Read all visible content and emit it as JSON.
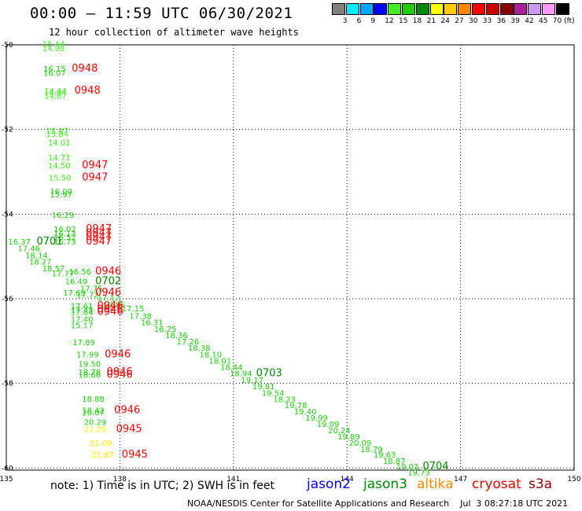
{
  "header": {
    "title": "00:00 – 11:59 UTC 06/30/2021",
    "subtitle": "12 hour collection of altimeter wave heights"
  },
  "colorbar": {
    "labels": [
      "3",
      "6",
      "9",
      "12",
      "15",
      "18",
      "21",
      "24",
      "27",
      "30",
      "33",
      "36",
      "39",
      "42",
      "45",
      "70 (ft)"
    ],
    "colors": [
      "#808080",
      "#00eaff",
      "#00a8ff",
      "#0000ff",
      "#44ee22",
      "#22cc11",
      "#008800",
      "#ffff00",
      "#ffcc00",
      "#ff8800",
      "#ff0000",
      "#cc0000",
      "#880000",
      "#aa2299",
      "#cc99ee",
      "#ff99ff",
      "#000000"
    ]
  },
  "chart_data": {
    "type": "scatter",
    "x_ticks": [
      "135",
      "138",
      "141",
      "144",
      "147",
      "150"
    ],
    "y_ticks": [
      "-50",
      "-52",
      "-54",
      "-56",
      "-58",
      "-60"
    ],
    "xlim": [
      135,
      150
    ],
    "ylim": [
      -60.05,
      -50
    ],
    "grid": true,
    "wave_labels": [
      {
        "t": "15.44",
        "lon": 135.95,
        "lat": -50.05,
        "c": "#44ee22"
      },
      {
        "t": "14.98",
        "lon": 135.95,
        "lat": -50.15,
        "c": "#44ee22"
      },
      {
        "t": "16.15",
        "lon": 135.98,
        "lat": -50.63,
        "c": "#22cc11"
      },
      {
        "t": "16.07",
        "lon": 135.98,
        "lat": -50.73,
        "c": "#22cc11"
      },
      {
        "t": "14.44",
        "lon": 136.0,
        "lat": -51.15,
        "c": "#44ee22"
      },
      {
        "t": "14.84",
        "lon": 136.0,
        "lat": -51.2,
        "c": "#44ee22"
      },
      {
        "t": "14.87",
        "lon": 136.0,
        "lat": -51.27,
        "c": "#44ee22"
      },
      {
        "t": "15.87",
        "lon": 136.05,
        "lat": -52.1,
        "c": "#44ee22"
      },
      {
        "t": "15.84",
        "lon": 136.05,
        "lat": -52.17,
        "c": "#44ee22"
      },
      {
        "t": "14.01",
        "lon": 136.1,
        "lat": -52.38,
        "c": "#44ee22"
      },
      {
        "t": "14.71",
        "lon": 136.1,
        "lat": -52.73,
        "c": "#44ee22"
      },
      {
        "t": "14.50",
        "lon": 136.1,
        "lat": -52.92,
        "c": "#44ee22"
      },
      {
        "t": "15.50",
        "lon": 136.12,
        "lat": -53.2,
        "c": "#44ee22"
      },
      {
        "t": "16.00",
        "lon": 136.15,
        "lat": -53.53,
        "c": "#22cc11"
      },
      {
        "t": "15.97",
        "lon": 136.15,
        "lat": -53.6,
        "c": "#22cc11"
      },
      {
        "t": "16.29",
        "lon": 136.2,
        "lat": -54.09,
        "c": "#22cc11"
      },
      {
        "t": "16.02",
        "lon": 136.25,
        "lat": -54.42,
        "c": "#22cc11"
      },
      {
        "t": "16.13",
        "lon": 136.25,
        "lat": -54.52,
        "c": "#22cc11"
      },
      {
        "t": "16.52",
        "lon": 136.25,
        "lat": -54.62,
        "c": "#22cc11"
      },
      {
        "t": "16.73",
        "lon": 136.25,
        "lat": -54.72,
        "c": "#22cc11"
      },
      {
        "t": "16.37",
        "lon": 135.05,
        "lat": -54.72,
        "c": "#22cc11"
      },
      {
        "t": "17.46",
        "lon": 135.3,
        "lat": -54.88,
        "c": "#22cc11"
      },
      {
        "t": "18.14",
        "lon": 135.5,
        "lat": -55.04,
        "c": "#22cc11"
      },
      {
        "t": "18.27",
        "lon": 135.6,
        "lat": -55.19,
        "c": "#22cc11"
      },
      {
        "t": "18.57",
        "lon": 135.95,
        "lat": -55.35,
        "c": "#22cc11"
      },
      {
        "t": "17.77",
        "lon": 136.2,
        "lat": -55.47,
        "c": "#22cc11"
      },
      {
        "t": "16.56",
        "lon": 136.65,
        "lat": -55.42,
        "c": "#22cc11"
      },
      {
        "t": "16.49",
        "lon": 136.55,
        "lat": -55.66,
        "c": "#22cc11"
      },
      {
        "t": "17.75",
        "lon": 136.95,
        "lat": -55.82,
        "c": "#22cc11"
      },
      {
        "t": "17.69",
        "lon": 136.5,
        "lat": -55.93,
        "c": "#22cc11"
      },
      {
        "t": "17.72",
        "lon": 136.85,
        "lat": -55.97,
        "c": "#22cc11"
      },
      {
        "t": "17.12",
        "lon": 137.4,
        "lat": -56.05,
        "c": "#22cc11"
      },
      {
        "t": "17.61",
        "lon": 136.7,
        "lat": -56.24,
        "c": "#22cc11"
      },
      {
        "t": "17.85",
        "lon": 137.55,
        "lat": -56.21,
        "c": "#22cc11"
      },
      {
        "t": "17.75",
        "lon": 136.7,
        "lat": -56.33,
        "c": "#22cc11"
      },
      {
        "t": "17.84",
        "lon": 136.7,
        "lat": -56.38,
        "c": "#22cc11"
      },
      {
        "t": "17.15",
        "lon": 138.05,
        "lat": -56.3,
        "c": "#22cc11"
      },
      {
        "t": "17.38",
        "lon": 138.25,
        "lat": -56.47,
        "c": "#22cc11"
      },
      {
        "t": "17.40",
        "lon": 136.7,
        "lat": -56.55,
        "c": "#22cc11"
      },
      {
        "t": "16.31",
        "lon": 138.55,
        "lat": -56.62,
        "c": "#22cc11"
      },
      {
        "t": "15.17",
        "lon": 136.7,
        "lat": -56.7,
        "c": "#22cc11"
      },
      {
        "t": "16.25",
        "lon": 138.9,
        "lat": -56.78,
        "c": "#22cc11"
      },
      {
        "t": "18.36",
        "lon": 139.2,
        "lat": -56.93,
        "c": "#22cc11"
      },
      {
        "t": "17.89",
        "lon": 136.75,
        "lat": -57.1,
        "c": "#22cc11"
      },
      {
        "t": "17.26",
        "lon": 139.5,
        "lat": -57.08,
        "c": "#22cc11"
      },
      {
        "t": "18.38",
        "lon": 139.8,
        "lat": -57.23,
        "c": "#22cc11"
      },
      {
        "t": "17.99",
        "lon": 136.85,
        "lat": -57.38,
        "c": "#22cc11"
      },
      {
        "t": "18.10",
        "lon": 140.1,
        "lat": -57.38,
        "c": "#22cc11"
      },
      {
        "t": "18.01",
        "lon": 140.35,
        "lat": -57.53,
        "c": "#22cc11"
      },
      {
        "t": "19.50",
        "lon": 136.9,
        "lat": -57.61,
        "c": "#22cc11"
      },
      {
        "t": "18.44",
        "lon": 140.65,
        "lat": -57.68,
        "c": "#22cc11"
      },
      {
        "t": "18.78",
        "lon": 136.9,
        "lat": -57.8,
        "c": "#22cc11"
      },
      {
        "t": "18.66",
        "lon": 136.9,
        "lat": -57.87,
        "c": "#22cc11"
      },
      {
        "t": "18.94",
        "lon": 140.9,
        "lat": -57.83,
        "c": "#22cc11"
      },
      {
        "t": "19.17",
        "lon": 141.2,
        "lat": -57.99,
        "c": "#22cc11"
      },
      {
        "t": "19.81",
        "lon": 141.5,
        "lat": -58.14,
        "c": "#22cc11"
      },
      {
        "t": "19.54",
        "lon": 141.75,
        "lat": -58.29,
        "c": "#22cc11"
      },
      {
        "t": "18.23",
        "lon": 142.05,
        "lat": -58.44,
        "c": "#22cc11"
      },
      {
        "t": "18.88",
        "lon": 137.0,
        "lat": -58.43,
        "c": "#22cc11"
      },
      {
        "t": "19.78",
        "lon": 142.35,
        "lat": -58.58,
        "c": "#22cc11"
      },
      {
        "t": "19.40",
        "lon": 142.6,
        "lat": -58.73,
        "c": "#22cc11"
      },
      {
        "t": "18.42",
        "lon": 137.0,
        "lat": -58.7,
        "c": "#22cc11"
      },
      {
        "t": "20.07",
        "lon": 137.0,
        "lat": -58.76,
        "c": "#22cc11"
      },
      {
        "t": "19.99",
        "lon": 142.9,
        "lat": -58.88,
        "c": "#22cc11"
      },
      {
        "t": "20.29",
        "lon": 137.05,
        "lat": -58.98,
        "c": "#22cc11"
      },
      {
        "t": "19.09",
        "lon": 143.2,
        "lat": -59.03,
        "c": "#22cc11"
      },
      {
        "t": "21.25",
        "lon": 137.05,
        "lat": -59.15,
        "c": "#ffee00"
      },
      {
        "t": "20.24",
        "lon": 143.5,
        "lat": -59.18,
        "c": "#22cc11"
      },
      {
        "t": "19.89",
        "lon": 143.75,
        "lat": -59.33,
        "c": "#22cc11"
      },
      {
        "t": "20.09",
        "lon": 144.05,
        "lat": -59.47,
        "c": "#22cc11"
      },
      {
        "t": "21.09",
        "lon": 137.2,
        "lat": -59.47,
        "c": "#ffee00"
      },
      {
        "t": "18.79",
        "lon": 144.35,
        "lat": -59.62,
        "c": "#22cc11"
      },
      {
        "t": "21.87",
        "lon": 137.25,
        "lat": -59.75,
        "c": "#ffee00"
      },
      {
        "t": "19.63",
        "lon": 144.7,
        "lat": -59.75,
        "c": "#22cc11"
      },
      {
        "t": "18.87",
        "lon": 144.95,
        "lat": -59.9,
        "c": "#22cc11"
      },
      {
        "t": "19.03",
        "lon": 145.3,
        "lat": -60.03,
        "c": "#22cc11"
      },
      {
        "t": "19.73",
        "lon": 145.6,
        "lat": -60.17,
        "c": "#22cc11"
      }
    ],
    "time_labels": [
      {
        "t": "0948",
        "lon": 136.73,
        "lat": -50.63,
        "c": "#ff0000"
      },
      {
        "t": "0948",
        "lon": 136.8,
        "lat": -51.15,
        "c": "#ff0000"
      },
      {
        "t": "0947",
        "lon": 137.0,
        "lat": -52.92,
        "c": "#ff0000"
      },
      {
        "t": "0947",
        "lon": 137.0,
        "lat": -53.2,
        "c": "#ff0000"
      },
      {
        "t": "0947",
        "lon": 137.1,
        "lat": -54.42,
        "c": "#ff0000"
      },
      {
        "t": "0947",
        "lon": 137.1,
        "lat": -54.52,
        "c": "#ff0000"
      },
      {
        "t": "0947",
        "lon": 137.1,
        "lat": -54.62,
        "c": "#ff0000"
      },
      {
        "t": "0947",
        "lon": 137.1,
        "lat": -54.72,
        "c": "#ff0000"
      },
      {
        "t": "0701",
        "lon": 135.8,
        "lat": -54.72,
        "c": "#008800"
      },
      {
        "t": "0946",
        "lon": 137.35,
        "lat": -55.42,
        "c": "#ff0000"
      },
      {
        "t": "0702",
        "lon": 137.35,
        "lat": -55.66,
        "c": "#008800"
      },
      {
        "t": "0946",
        "lon": 137.35,
        "lat": -55.93,
        "c": "#ff0000"
      },
      {
        "t": "0946",
        "lon": 137.4,
        "lat": -56.24,
        "c": "#ff0000"
      },
      {
        "t": "0946",
        "lon": 137.4,
        "lat": -56.33,
        "c": "#ff0000"
      },
      {
        "t": "0946",
        "lon": 137.4,
        "lat": -56.38,
        "c": "#ff0000"
      },
      {
        "t": "0946",
        "lon": 137.6,
        "lat": -57.38,
        "c": "#ff0000"
      },
      {
        "t": "0946",
        "lon": 137.65,
        "lat": -57.8,
        "c": "#ff0000"
      },
      {
        "t": "0946",
        "lon": 137.65,
        "lat": -57.87,
        "c": "#ff0000"
      },
      {
        "t": "0703",
        "lon": 141.6,
        "lat": -57.83,
        "c": "#008800"
      },
      {
        "t": "0946",
        "lon": 137.85,
        "lat": -58.7,
        "c": "#ff0000"
      },
      {
        "t": "0945",
        "lon": 137.9,
        "lat": -59.15,
        "c": "#ff0000"
      },
      {
        "t": "0945",
        "lon": 138.05,
        "lat": -59.75,
        "c": "#ff0000"
      },
      {
        "t": "0704",
        "lon": 146.0,
        "lat": -60.03,
        "c": "#008800"
      }
    ]
  },
  "footer": {
    "note": "note: 1) Time is in UTC; 2) SWH is in feet",
    "satellites": [
      {
        "name": "jason2",
        "color": "#0000ff"
      },
      {
        "name": "jason3",
        "color": "#008800"
      },
      {
        "name": "altika",
        "color": "#ff8800"
      },
      {
        "name": "cryosat",
        "color": "#ee0000"
      },
      {
        "name": "s3a",
        "color": "#880000"
      }
    ],
    "credit": "NOAA/NESDIS Center for Satellite Applications and Research    Jul  3 08:27:18 UTC 2021"
  }
}
